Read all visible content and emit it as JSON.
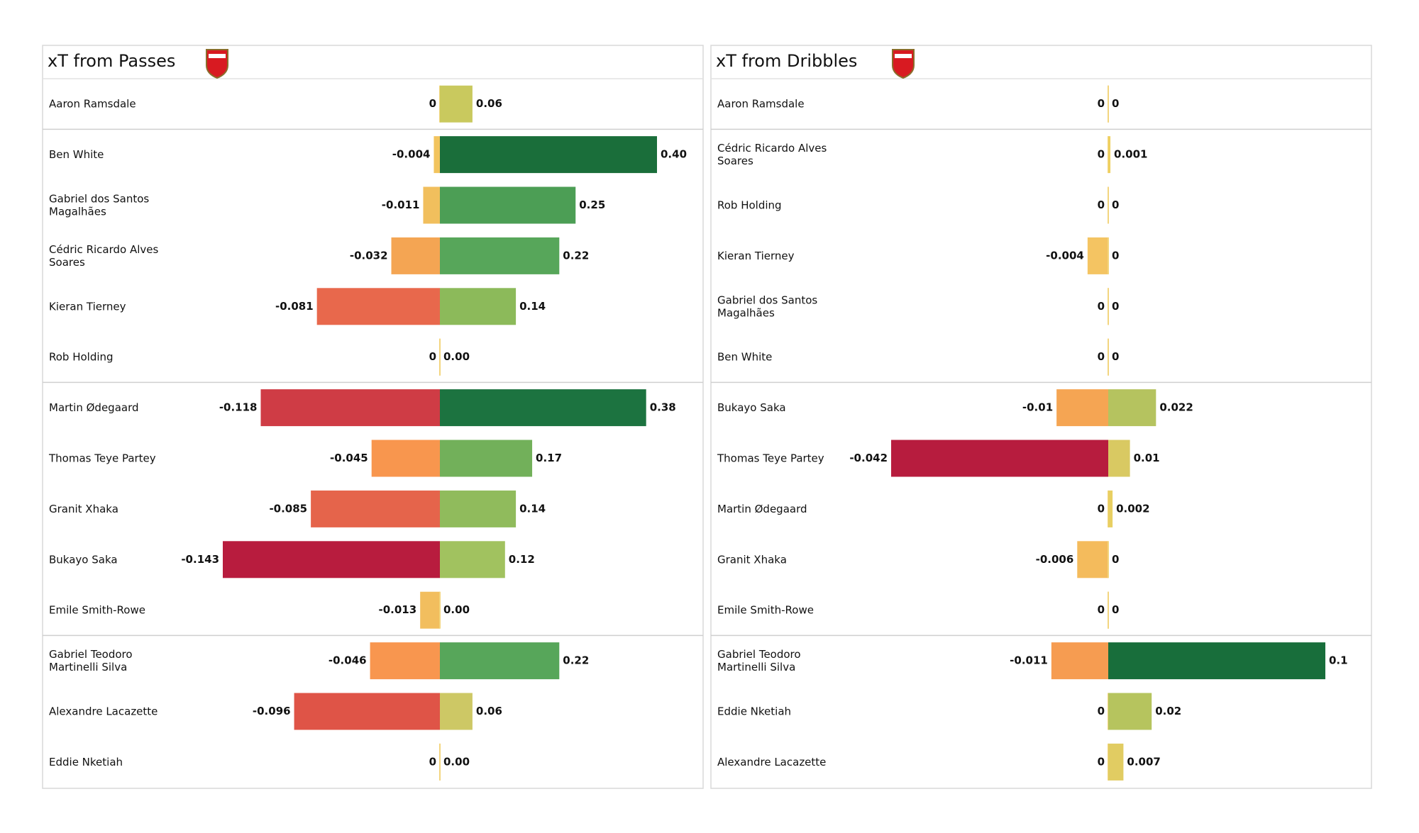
{
  "chart_data": [
    {
      "type": "diverging-bar",
      "title": "xT from Passes",
      "categories": [
        "Aaron Ramsdale",
        "Ben White",
        "Gabriel dos Santos Magalhães",
        "Cédric Ricardo Alves Soares",
        "Kieran Tierney",
        "Rob Holding",
        "Martin Ødegaard",
        "Thomas Teye Partey",
        "Granit Xhaka",
        "Bukayo Saka",
        "Emile Smith-Rowe",
        "Gabriel Teodoro Martinelli Silva",
        "Alexandre Lacazette",
        "Eddie Nketiah"
      ],
      "series": [
        {
          "values": [
            0,
            -0.004,
            -0.011,
            -0.032,
            -0.081,
            0,
            -0.118,
            -0.045,
            -0.085,
            -0.143,
            -0.013,
            -0.046,
            -0.096,
            0
          ],
          "colors": [
            "#f3d57e",
            "#f2c45e",
            "#f1bf5d",
            "#f4a553",
            "#e8684c",
            "#f3d57e",
            "#cf3c45",
            "#f8964e",
            "#e5644b",
            "#b81c3e",
            "#f2be5e",
            "#f8964f",
            "#df5447",
            "#f3d57e"
          ]
        },
        {
          "values": [
            0.06,
            0.4,
            0.25,
            0.22,
            0.14,
            0,
            0.38,
            0.17,
            0.14,
            0.12,
            0,
            0.22,
            0.06,
            0
          ],
          "value_labels": [
            "0.06",
            "0.40",
            "0.25",
            "0.22",
            "0.14",
            "0.00",
            "0.38",
            "0.17",
            "0.14",
            "0.12",
            "0.00",
            "0.22",
            "0.06",
            "0.00"
          ],
          "colors": [
            "#c9c95e",
            "#1a6e3a",
            "#4c9e55",
            "#57a65a",
            "#8cba5a",
            "#f3d57e",
            "#1c7340",
            "#72b05a",
            "#90bb5c",
            "#a1c25f",
            "#f3d57e",
            "#57a65a",
            "#cdc865",
            "#f3d57e"
          ]
        }
      ]
    },
    {
      "type": "diverging-bar",
      "title": "xT from Dribbles",
      "categories": [
        "Aaron Ramsdale",
        "Cédric Ricardo Alves Soares",
        "Rob Holding",
        "Kieran Tierney",
        "Gabriel dos Santos Magalhães",
        "Ben White",
        "Bukayo Saka",
        "Thomas Teye Partey",
        "Martin Ødegaard",
        "Granit Xhaka",
        "Emile Smith-Rowe",
        "Gabriel Teodoro Martinelli Silva",
        "Eddie Nketiah",
        "Alexandre Lacazette"
      ],
      "series": [
        {
          "values": [
            0,
            0,
            0,
            -0.004,
            0,
            0,
            -0.01,
            -0.042,
            0,
            -0.006,
            0,
            -0.011,
            0,
            0
          ],
          "colors": [
            "#f3d57e",
            "#f3d57e",
            "#f3d57e",
            "#f4c462",
            "#f3d57e",
            "#f3d57e",
            "#f5a553",
            "#b71c3e",
            "#f3d57e",
            "#f4bb5c",
            "#f3d57e",
            "#f69c51",
            "#f3d57e",
            "#f3d57e"
          ]
        },
        {
          "values": [
            0,
            0.001,
            0,
            0,
            0,
            0,
            0.022,
            0.01,
            0.002,
            0,
            0,
            0.1,
            0.02,
            0.007
          ],
          "colors": [
            "#f3d57e",
            "#eed060",
            "#f3d57e",
            "#f3d57e",
            "#f3d57e",
            "#f3d57e",
            "#b5c35f",
            "#d9c962",
            "#e8cf62",
            "#f3d57e",
            "#f3d57e",
            "#186e3b",
            "#b6c45e",
            "#e1cc62"
          ]
        }
      ]
    }
  ]
}
